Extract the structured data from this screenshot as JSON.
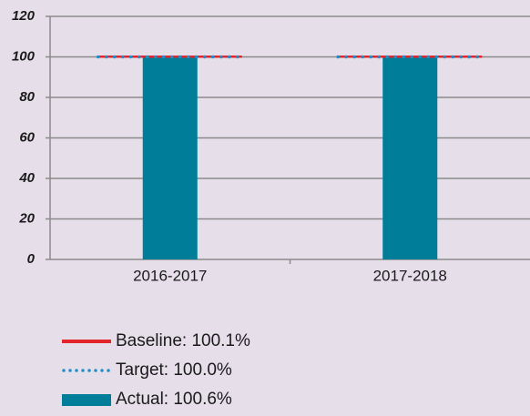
{
  "chart_data": {
    "type": "bar",
    "categories": [
      "2016-2017",
      "2017-2018"
    ],
    "series": [
      {
        "name": "Baseline: 100.1%",
        "type": "line",
        "style": "solid",
        "color": "#e3262b",
        "values": [
          100.1,
          100.1
        ]
      },
      {
        "name": "Target: 100.0%",
        "type": "line",
        "style": "dotted",
        "color": "#1e8fc9",
        "values": [
          100.0,
          100.0
        ]
      },
      {
        "name": "Actual: 100.6%",
        "type": "bar",
        "color": "#007e99",
        "values": [
          99.8,
          100.6
        ]
      }
    ],
    "ylim": [
      0,
      120
    ],
    "yticks": [
      0,
      20,
      40,
      60,
      80,
      100,
      120
    ],
    "grid": true
  }
}
